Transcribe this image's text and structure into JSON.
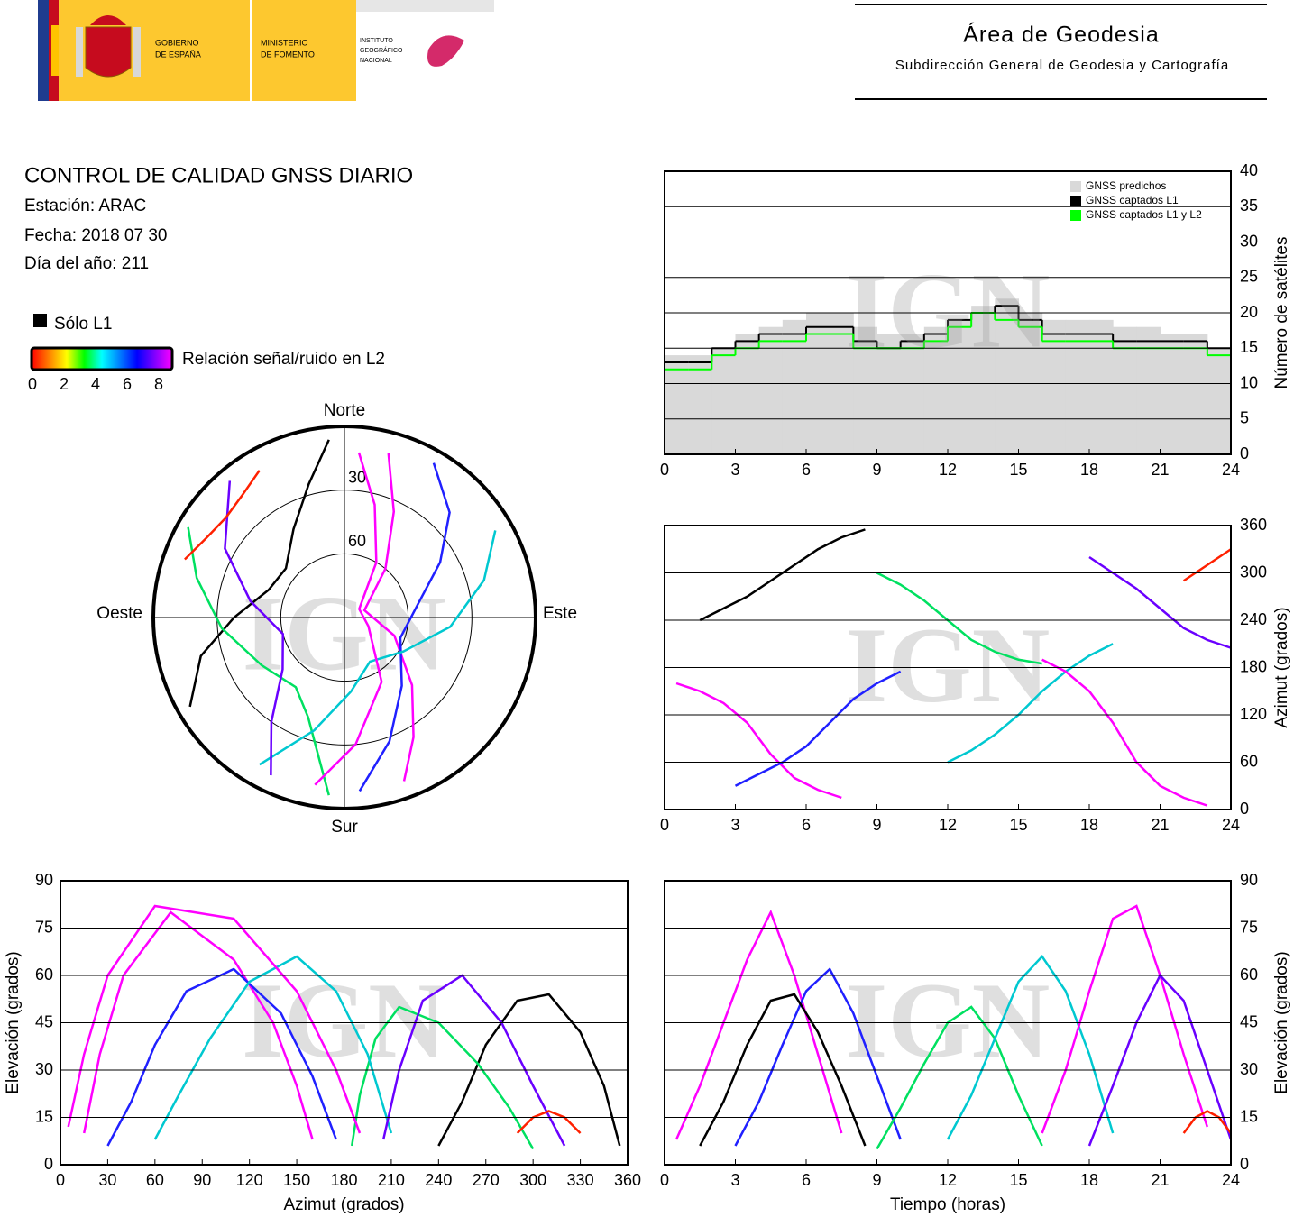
{
  "header": {
    "government": [
      "GOBIERNO",
      "DE ESPAÑA"
    ],
    "ministry": [
      "MINISTERIO",
      "DE FOMENTO"
    ],
    "institute": [
      "INSTITUTO",
      "GEOGRÁFICO",
      "NACIONAL"
    ],
    "area": "Área de Geodesia",
    "subdirectorate": "Subdirección General de Geodesia y Cartografía"
  },
  "info": {
    "title": "CONTROL DE CALIDAD GNSS DIARIO",
    "station": "Estación: ARAC",
    "date": "Fecha: 2018 07 30",
    "doy": "Día del año: 211"
  },
  "legend": {
    "l1_only": {
      "label": "Sólo L1",
      "color": "#000000"
    },
    "colorbar": {
      "label": "Relación señal/ruido en L2",
      "lim": [
        0,
        8
      ],
      "ticks": [
        0,
        2,
        4,
        6,
        8
      ],
      "colors": [
        "#ff0000",
        "#ff8000",
        "#ffff00",
        "#00ff00",
        "#00ffff",
        "#0080ff",
        "#0000ff",
        "#8000ff",
        "#ff00ff"
      ]
    }
  },
  "watermark": "IGN",
  "chart_data": [
    {
      "type": "step",
      "ylabel": "Número de satélites",
      "yaxis": "right",
      "grid": true,
      "legend": "upper right",
      "x": [
        0,
        1,
        2,
        3,
        4,
        5,
        6,
        7,
        8,
        9,
        10,
        11,
        12,
        13,
        14,
        15,
        16,
        17,
        18,
        19,
        20,
        21,
        22,
        23
      ],
      "xlim": [
        0,
        24
      ],
      "xticks": [
        0,
        3,
        6,
        9,
        12,
        15,
        18,
        21,
        24
      ],
      "ylim": [
        0,
        40
      ],
      "yticks": [
        0,
        5,
        10,
        15,
        20,
        25,
        30,
        35,
        40
      ],
      "series": [
        {
          "name": "GNSS predichos",
          "color": "#d9d9d9",
          "style": "area",
          "values": [
            14,
            14,
            15,
            17,
            18,
            19,
            20,
            20,
            18,
            17,
            17,
            18,
            19,
            21,
            22,
            20,
            19,
            19,
            19,
            18,
            18,
            17,
            17,
            15
          ]
        },
        {
          "name": "GNSS captados L1",
          "color": "#000000",
          "style": "line",
          "values": [
            13,
            13,
            15,
            16,
            17,
            17,
            18,
            18,
            16,
            15,
            16,
            17,
            19,
            20,
            21,
            19,
            17,
            17,
            17,
            16,
            16,
            16,
            16,
            15
          ]
        },
        {
          "name": "GNSS captados L1 y L2",
          "color": "#00ff00",
          "style": "line",
          "values": [
            12,
            12,
            14,
            15,
            16,
            16,
            17,
            17,
            15,
            15,
            15,
            16,
            18,
            20,
            19,
            18,
            16,
            16,
            16,
            15,
            15,
            15,
            15,
            14
          ]
        }
      ]
    },
    {
      "type": "polar",
      "directions": {
        "north": "Norte",
        "east": "Este",
        "south": "Sur",
        "west": "Oeste"
      },
      "rlim": [
        90,
        0
      ],
      "rticks": [
        30,
        60
      ],
      "series": [
        {
          "color": "#ff00ff",
          "x": [
            160,
            150,
            135,
            110,
            70,
            40,
            25,
            15
          ],
          "values": [
            8,
            25,
            45,
            65,
            80,
            60,
            35,
            10
          ]
        },
        {
          "color": "#2020ff",
          "x": [
            30,
            45,
            60,
            80,
            110,
            140,
            160,
            175
          ],
          "values": [
            6,
            20,
            38,
            55,
            62,
            48,
            28,
            8
          ]
        },
        {
          "color": "#000000",
          "x": [
            240,
            255,
            270,
            290,
            310,
            330,
            345,
            355
          ],
          "values": [
            6,
            20,
            38,
            52,
            54,
            42,
            25,
            6
          ]
        },
        {
          "color": "#00e060",
          "x": [
            300,
            285,
            265,
            240,
            215,
            200,
            190,
            185
          ],
          "values": [
            5,
            18,
            32,
            45,
            50,
            40,
            22,
            6
          ]
        },
        {
          "color": "#00c8d0",
          "x": [
            60,
            75,
            95,
            120,
            150,
            175,
            195,
            210
          ],
          "values": [
            8,
            22,
            40,
            58,
            66,
            55,
            35,
            10
          ]
        },
        {
          "color": "#ff00ff",
          "x": [
            190,
            175,
            150,
            110,
            60,
            30,
            15,
            5
          ],
          "values": [
            10,
            30,
            55,
            78,
            82,
            60,
            35,
            12
          ]
        },
        {
          "color": "#6a00ff",
          "x": [
            320,
            300,
            280,
            255,
            230,
            215,
            205
          ],
          "values": [
            6,
            25,
            45,
            60,
            52,
            30,
            8
          ]
        },
        {
          "color": "#ff2000",
          "x": [
            290,
            300,
            310,
            320,
            330
          ],
          "values": [
            10,
            15,
            17,
            15,
            10
          ]
        }
      ]
    },
    {
      "type": "track",
      "ylabel": "Azimut (grados)",
      "yaxis": "right",
      "grid": true,
      "xlim": [
        0,
        24
      ],
      "xticks": [
        0,
        3,
        6,
        9,
        12,
        15,
        18,
        21,
        24
      ],
      "ylim": [
        0,
        360
      ],
      "yticks": [
        0,
        60,
        120,
        180,
        240,
        300,
        360
      ],
      "series": [
        {
          "color": "#ff00ff",
          "x": [
            0.5,
            1.5,
            2.5,
            3.5,
            4.5,
            5.5,
            6.5,
            7.5
          ],
          "values": [
            160,
            150,
            135,
            110,
            70,
            40,
            25,
            15
          ]
        },
        {
          "color": "#2020ff",
          "x": [
            3,
            4,
            5,
            6,
            7,
            8,
            9,
            10
          ],
          "values": [
            30,
            45,
            60,
            80,
            110,
            140,
            160,
            175
          ]
        },
        {
          "color": "#000000",
          "x": [
            1.5,
            2.5,
            3.5,
            4.5,
            5.5,
            6.5,
            7.5,
            8.5
          ],
          "values": [
            240,
            255,
            270,
            290,
            310,
            330,
            345,
            355
          ]
        },
        {
          "color": "#00e060",
          "x": [
            9,
            10,
            11,
            12,
            13,
            14,
            15,
            16
          ],
          "values": [
            300,
            285,
            265,
            240,
            215,
            200,
            190,
            185
          ]
        },
        {
          "color": "#00c8d0",
          "x": [
            12,
            13,
            14,
            15,
            16,
            17,
            18,
            19
          ],
          "values": [
            60,
            75,
            95,
            120,
            150,
            175,
            195,
            210
          ]
        },
        {
          "color": "#ff00ff",
          "x": [
            16,
            17,
            18,
            19,
            20,
            21,
            22,
            23
          ],
          "values": [
            190,
            175,
            150,
            110,
            60,
            30,
            15,
            5
          ]
        },
        {
          "color": "#6a00ff",
          "x": [
            18,
            19,
            20,
            21,
            22,
            23,
            24
          ],
          "values": [
            320,
            300,
            280,
            255,
            230,
            215,
            205
          ]
        },
        {
          "color": "#ff2000",
          "x": [
            22,
            22.5,
            23,
            23.5,
            24
          ],
          "values": [
            290,
            300,
            310,
            320,
            330
          ]
        }
      ]
    },
    {
      "type": "track",
      "xlabel": "Azimut (grados)",
      "ylabel": "Elevación (grados)",
      "yaxis": "left",
      "grid": true,
      "xlim": [
        0,
        360
      ],
      "xticks": [
        0,
        30,
        60,
        90,
        120,
        150,
        180,
        210,
        240,
        270,
        300,
        330,
        360
      ],
      "ylim": [
        0,
        90
      ],
      "yticks": [
        0,
        15,
        30,
        45,
        60,
        75,
        90
      ],
      "series": [
        {
          "color": "#ff00ff",
          "x": [
            160,
            150,
            135,
            110,
            70,
            40,
            25,
            15
          ],
          "values": [
            8,
            25,
            45,
            65,
            80,
            60,
            35,
            10
          ]
        },
        {
          "color": "#2020ff",
          "x": [
            30,
            45,
            60,
            80,
            110,
            140,
            160,
            175
          ],
          "values": [
            6,
            20,
            38,
            55,
            62,
            48,
            28,
            8
          ]
        },
        {
          "color": "#000000",
          "x": [
            240,
            255,
            270,
            290,
            310,
            330,
            345,
            355
          ],
          "values": [
            6,
            20,
            38,
            52,
            54,
            42,
            25,
            6
          ]
        },
        {
          "color": "#00e060",
          "x": [
            300,
            285,
            265,
            240,
            215,
            200,
            190,
            185
          ],
          "values": [
            5,
            18,
            32,
            45,
            50,
            40,
            22,
            6
          ]
        },
        {
          "color": "#00c8d0",
          "x": [
            60,
            75,
            95,
            120,
            150,
            175,
            195,
            210
          ],
          "values": [
            8,
            22,
            40,
            58,
            66,
            55,
            35,
            10
          ]
        },
        {
          "color": "#ff00ff",
          "x": [
            190,
            175,
            150,
            110,
            60,
            30,
            15,
            5
          ],
          "values": [
            10,
            30,
            55,
            78,
            82,
            60,
            35,
            12
          ]
        },
        {
          "color": "#6a00ff",
          "x": [
            320,
            300,
            280,
            255,
            230,
            215,
            205
          ],
          "values": [
            6,
            25,
            45,
            60,
            52,
            30,
            8
          ]
        },
        {
          "color": "#ff2000",
          "x": [
            290,
            300,
            310,
            320,
            330
          ],
          "values": [
            10,
            15,
            17,
            15,
            10
          ]
        }
      ]
    },
    {
      "type": "track",
      "xlabel": "Tiempo (horas)",
      "ylabel": "Elevación (grados)",
      "yaxis": "right",
      "grid": true,
      "xlim": [
        0,
        24
      ],
      "xticks": [
        0,
        3,
        6,
        9,
        12,
        15,
        18,
        21,
        24
      ],
      "ylim": [
        0,
        90
      ],
      "yticks": [
        0,
        15,
        30,
        45,
        60,
        75,
        90
      ],
      "series": [
        {
          "color": "#ff00ff",
          "x": [
            0.5,
            1.5,
            2.5,
            3.5,
            4.5,
            5.5,
            6.5,
            7.5
          ],
          "values": [
            8,
            25,
            45,
            65,
            80,
            60,
            35,
            10
          ]
        },
        {
          "color": "#2020ff",
          "x": [
            3,
            4,
            5,
            6,
            7,
            8,
            9,
            10
          ],
          "values": [
            6,
            20,
            38,
            55,
            62,
            48,
            28,
            8
          ]
        },
        {
          "color": "#000000",
          "x": [
            1.5,
            2.5,
            3.5,
            4.5,
            5.5,
            6.5,
            7.5,
            8.5
          ],
          "values": [
            6,
            20,
            38,
            52,
            54,
            42,
            25,
            6
          ]
        },
        {
          "color": "#00e060",
          "x": [
            9,
            10,
            11,
            12,
            13,
            14,
            15,
            16
          ],
          "values": [
            5,
            18,
            32,
            45,
            50,
            40,
            22,
            6
          ]
        },
        {
          "color": "#00c8d0",
          "x": [
            12,
            13,
            14,
            15,
            16,
            17,
            18,
            19
          ],
          "values": [
            8,
            22,
            40,
            58,
            66,
            55,
            35,
            10
          ]
        },
        {
          "color": "#ff00ff",
          "x": [
            16,
            17,
            18,
            19,
            20,
            21,
            22,
            23
          ],
          "values": [
            10,
            30,
            55,
            78,
            82,
            60,
            35,
            12
          ]
        },
        {
          "color": "#6a00ff",
          "x": [
            18,
            19,
            20,
            21,
            22,
            23,
            24
          ],
          "values": [
            6,
            25,
            45,
            60,
            52,
            30,
            8
          ]
        },
        {
          "color": "#ff2000",
          "x": [
            22,
            22.5,
            23,
            23.5,
            24
          ],
          "values": [
            10,
            15,
            17,
            15,
            10
          ]
        }
      ]
    }
  ]
}
